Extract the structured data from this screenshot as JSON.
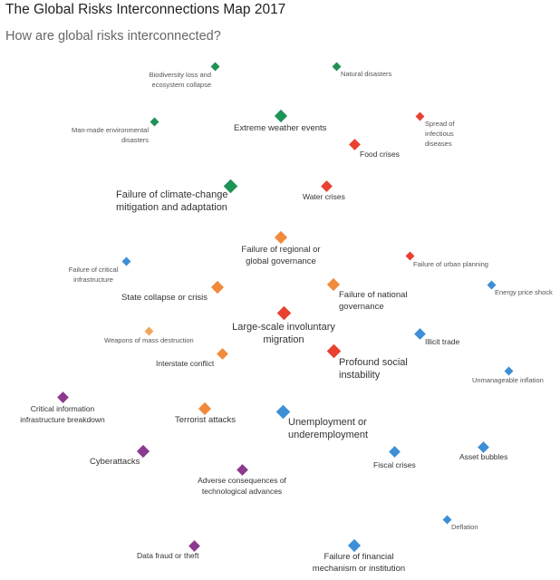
{
  "title": "The Global Risks Interconnections Map 2017",
  "subtitle": "How are global risks interconnected?",
  "colors": {
    "environmental": "#1e9356",
    "societal": "#e84130",
    "geopolitical": "#f08a3c",
    "economic": "#3d8fd6",
    "technological": "#8b3a8f",
    "weapons": "#f2a75a"
  },
  "risks": [
    {
      "id": "biodiversity",
      "label": "Biodiversity loss and ecosystem collapse",
      "category": "environmental"
    },
    {
      "id": "natural-disasters",
      "label": "Natural disasters",
      "category": "environmental"
    },
    {
      "id": "man-made",
      "label": "Man-made environmental disasters",
      "category": "environmental"
    },
    {
      "id": "extreme-weather",
      "label": "Extreme weather events",
      "category": "environmental"
    },
    {
      "id": "infectious",
      "label": "Spread of infectious diseases",
      "category": "societal"
    },
    {
      "id": "food",
      "label": "Food crises",
      "category": "societal"
    },
    {
      "id": "climate",
      "label": "Failure of climate-change mitigation and adaptation",
      "category": "environmental"
    },
    {
      "id": "water",
      "label": "Water crises",
      "category": "societal"
    },
    {
      "id": "regional-gov",
      "label": "Failure of regional or global governance",
      "category": "geopolitical"
    },
    {
      "id": "urban",
      "label": "Failure of urban planning",
      "category": "societal"
    },
    {
      "id": "critical-infra",
      "label": "Failure of critical infrastructure",
      "category": "economic"
    },
    {
      "id": "energy",
      "label": "Energy price shock",
      "category": "economic"
    },
    {
      "id": "state-collapse",
      "label": "State collapse or crisis",
      "category": "geopolitical"
    },
    {
      "id": "national-gov",
      "label": "Failure of national governance",
      "category": "geopolitical"
    },
    {
      "id": "migration",
      "label": "Large-scale involuntary migration",
      "category": "societal"
    },
    {
      "id": "wmd",
      "label": "Weapons of mass destruction",
      "category": "weapons"
    },
    {
      "id": "illicit",
      "label": "Illicit trade",
      "category": "economic"
    },
    {
      "id": "social-instability",
      "label": "Profound social instability",
      "category": "societal"
    },
    {
      "id": "interstate",
      "label": "Interstate conflict",
      "category": "geopolitical"
    },
    {
      "id": "inflation",
      "label": "Unmanageable inflation",
      "category": "economic"
    },
    {
      "id": "cii",
      "label": "Critical information infrastructure breakdown",
      "category": "technological"
    },
    {
      "id": "terrorist",
      "label": "Terrorist attacks",
      "category": "geopolitical"
    },
    {
      "id": "unemployment",
      "label": "Unemployment or underemployment",
      "category": "economic"
    },
    {
      "id": "cyberattacks",
      "label": "Cyberattacks",
      "category": "technological"
    },
    {
      "id": "fiscal",
      "label": "Fiscal crises",
      "category": "economic"
    },
    {
      "id": "asset-bubbles",
      "label": "Asset bubbles",
      "category": "economic"
    },
    {
      "id": "adverse-tech",
      "label": "Adverse consequences of technological advances",
      "category": "technological"
    },
    {
      "id": "deflation",
      "label": "Deflation",
      "category": "economic"
    },
    {
      "id": "data-fraud",
      "label": "Data fraud or theft",
      "category": "technological"
    },
    {
      "id": "financial-mech",
      "label": "Failure of financial mechanism or institution",
      "category": "economic"
    }
  ]
}
